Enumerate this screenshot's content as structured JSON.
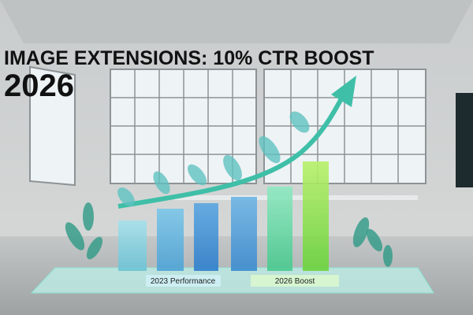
{
  "header": {
    "title_line1": "IMAGE EXTENSIONS: 10% CTR BOOST",
    "title_line2": "2026"
  },
  "platform": {
    "labels": [
      "2023 Performance",
      "2026 Boost"
    ]
  }
}
